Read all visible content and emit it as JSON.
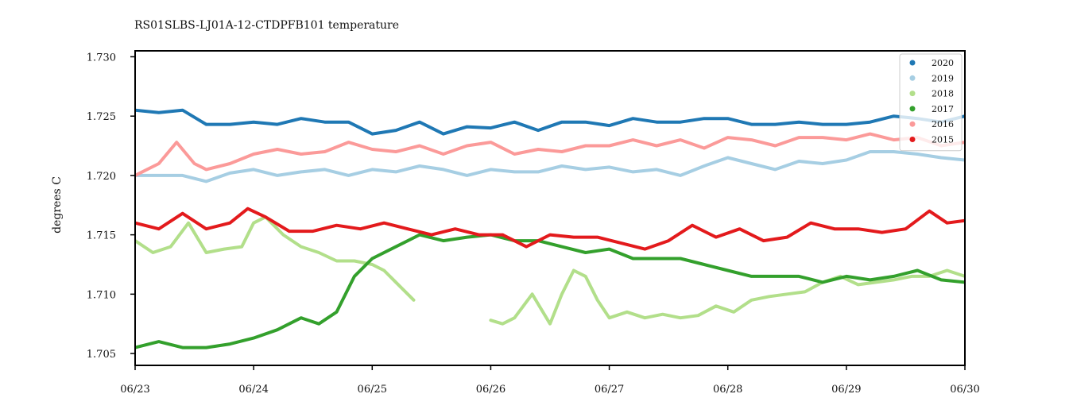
{
  "chart_data": {
    "type": "line",
    "title": "RS01SLBS-LJ01A-12-CTDPFB101 temperature",
    "ylabel": "degrees C",
    "xlabel": "",
    "xlim": [
      0,
      7
    ],
    "ylim": [
      1.704,
      1.7305
    ],
    "x_ticks": [
      "06/23",
      "06/24",
      "06/25",
      "06/26",
      "06/27",
      "06/28",
      "06/29",
      "06/30"
    ],
    "y_ticks": [
      "1.705",
      "1.710",
      "1.715",
      "1.720",
      "1.725",
      "1.730"
    ],
    "grid": false,
    "legend_position": "top-right",
    "series": [
      {
        "name": "2020",
        "color": "#1f78b4",
        "x": [
          0,
          0.2,
          0.4,
          0.6,
          0.8,
          1.0,
          1.2,
          1.4,
          1.6,
          1.8,
          2.0,
          2.2,
          2.4,
          2.6,
          2.8,
          3.0,
          3.2,
          3.4,
          3.6,
          3.8,
          4.0,
          4.2,
          4.4,
          4.6,
          4.8,
          5.0,
          5.2,
          5.4,
          5.6,
          5.8,
          6.0,
          6.2,
          6.4,
          6.6,
          6.8,
          7.0
        ],
        "y": [
          1.7255,
          1.7253,
          1.7255,
          1.7243,
          1.7243,
          1.7245,
          1.7243,
          1.7248,
          1.7245,
          1.7245,
          1.7235,
          1.7238,
          1.7245,
          1.7235,
          1.7241,
          1.724,
          1.7245,
          1.7238,
          1.7245,
          1.7245,
          1.7242,
          1.7248,
          1.7245,
          1.7245,
          1.7248,
          1.7248,
          1.7243,
          1.7243,
          1.7245,
          1.7243,
          1.7243,
          1.7245,
          1.725,
          1.7248,
          1.7245,
          1.725
        ]
      },
      {
        "name": "2019",
        "color": "#a6cee3",
        "x": [
          0,
          0.2,
          0.4,
          0.6,
          0.8,
          1.0,
          1.2,
          1.4,
          1.6,
          1.8,
          2.0,
          2.2,
          2.4,
          2.6,
          2.8,
          3.0,
          3.2,
          3.4,
          3.6,
          3.8,
          4.0,
          4.2,
          4.4,
          4.6,
          4.8,
          5.0,
          5.2,
          5.4,
          5.6,
          5.8,
          6.0,
          6.2,
          6.4,
          6.6,
          6.8,
          7.0
        ],
        "y": [
          1.72,
          1.72,
          1.72,
          1.7195,
          1.7202,
          1.7205,
          1.72,
          1.7203,
          1.7205,
          1.72,
          1.7205,
          1.7203,
          1.7208,
          1.7205,
          1.72,
          1.7205,
          1.7203,
          1.7203,
          1.7208,
          1.7205,
          1.7207,
          1.7203,
          1.7205,
          1.72,
          1.7208,
          1.7215,
          1.721,
          1.7205,
          1.7212,
          1.721,
          1.7213,
          1.722,
          1.722,
          1.7218,
          1.7215,
          1.7213
        ]
      },
      {
        "name": "2018",
        "color": "#b2df8a",
        "x": [
          0,
          0.15,
          0.3,
          0.45,
          0.6,
          0.75,
          0.9,
          1.0,
          1.1,
          1.25,
          1.4,
          1.55,
          1.7,
          1.85,
          2.0,
          2.1,
          2.2,
          2.3,
          2.35,
          null,
          3.0,
          3.1,
          3.2,
          3.35,
          3.5,
          3.6,
          3.7,
          3.8,
          3.9,
          4.0,
          4.15,
          4.3,
          4.45,
          4.6,
          4.75,
          4.9,
          5.05,
          5.2,
          5.35,
          5.5,
          5.65,
          5.8,
          5.95,
          6.1,
          6.25,
          6.4,
          6.55,
          6.7,
          6.85,
          7.0
        ],
        "y": [
          1.7145,
          1.7135,
          1.714,
          1.716,
          1.7135,
          1.7138,
          1.714,
          1.716,
          1.7165,
          1.715,
          1.714,
          1.7135,
          1.7128,
          1.7128,
          1.7125,
          1.712,
          1.711,
          1.71,
          1.7095,
          null,
          1.7078,
          1.7075,
          1.708,
          1.71,
          1.7075,
          1.71,
          1.712,
          1.7115,
          1.7095,
          1.708,
          1.7085,
          1.708,
          1.7083,
          1.708,
          1.7082,
          1.709,
          1.7085,
          1.7095,
          1.7098,
          1.71,
          1.7102,
          1.711,
          1.7115,
          1.7108,
          1.711,
          1.7112,
          1.7115,
          1.7115,
          1.712,
          1.7115
        ]
      },
      {
        "name": "2017",
        "color": "#33a02c",
        "x": [
          0,
          0.2,
          0.4,
          0.6,
          0.8,
          1.0,
          1.2,
          1.4,
          1.55,
          1.7,
          1.85,
          2.0,
          2.2,
          2.4,
          2.6,
          2.8,
          3.0,
          3.2,
          3.4,
          3.6,
          3.8,
          4.0,
          4.2,
          4.4,
          4.6,
          4.8,
          5.0,
          5.2,
          5.4,
          5.6,
          5.8,
          6.0,
          6.2,
          6.4,
          6.6,
          6.8,
          7.0
        ],
        "y": [
          1.7055,
          1.706,
          1.7055,
          1.7055,
          1.7058,
          1.7063,
          1.707,
          1.708,
          1.7075,
          1.7085,
          1.7115,
          1.713,
          1.714,
          1.715,
          1.7145,
          1.7148,
          1.715,
          1.7145,
          1.7145,
          1.714,
          1.7135,
          1.7138,
          1.713,
          1.713,
          1.713,
          1.7125,
          1.712,
          1.7115,
          1.7115,
          1.7115,
          1.711,
          1.7115,
          1.7112,
          1.7115,
          1.712,
          1.7112,
          1.711
        ]
      },
      {
        "name": "2016",
        "color": "#fb9a99",
        "x": [
          0,
          0.2,
          0.35,
          0.5,
          0.6,
          0.8,
          1.0,
          1.2,
          1.4,
          1.6,
          1.8,
          2.0,
          2.2,
          2.4,
          2.6,
          2.8,
          3.0,
          3.2,
          3.4,
          3.6,
          3.8,
          4.0,
          4.2,
          4.4,
          4.6,
          4.8,
          5.0,
          5.2,
          5.4,
          5.6,
          5.8,
          6.0,
          6.2,
          6.4,
          6.6,
          6.8,
          7.0
        ],
        "y": [
          1.72,
          1.721,
          1.7228,
          1.721,
          1.7205,
          1.721,
          1.7218,
          1.7222,
          1.7218,
          1.722,
          1.7228,
          1.7222,
          1.722,
          1.7225,
          1.7218,
          1.7225,
          1.7228,
          1.7218,
          1.7222,
          1.722,
          1.7225,
          1.7225,
          1.723,
          1.7225,
          1.723,
          1.7223,
          1.7232,
          1.723,
          1.7225,
          1.7232,
          1.7232,
          1.723,
          1.7235,
          1.723,
          1.7232,
          1.7225,
          1.7228
        ]
      },
      {
        "name": "2015",
        "color": "#e31a1c",
        "x": [
          0,
          0.2,
          0.4,
          0.6,
          0.8,
          0.95,
          1.1,
          1.3,
          1.5,
          1.7,
          1.9,
          2.1,
          2.3,
          2.5,
          2.7,
          2.9,
          3.1,
          3.3,
          3.5,
          3.7,
          3.9,
          4.1,
          4.3,
          4.5,
          4.7,
          4.9,
          5.1,
          5.3,
          5.5,
          5.7,
          5.9,
          6.1,
          6.3,
          6.5,
          6.7,
          6.85,
          7.0
        ],
        "y": [
          1.716,
          1.7155,
          1.7168,
          1.7155,
          1.716,
          1.7172,
          1.7165,
          1.7153,
          1.7153,
          1.7158,
          1.7155,
          1.716,
          1.7155,
          1.715,
          1.7155,
          1.715,
          1.715,
          1.714,
          1.715,
          1.7148,
          1.7148,
          1.7143,
          1.7138,
          1.7145,
          1.7158,
          1.7148,
          1.7155,
          1.7145,
          1.7148,
          1.716,
          1.7155,
          1.7155,
          1.7152,
          1.7155,
          1.717,
          1.716,
          1.7162
        ]
      }
    ]
  }
}
